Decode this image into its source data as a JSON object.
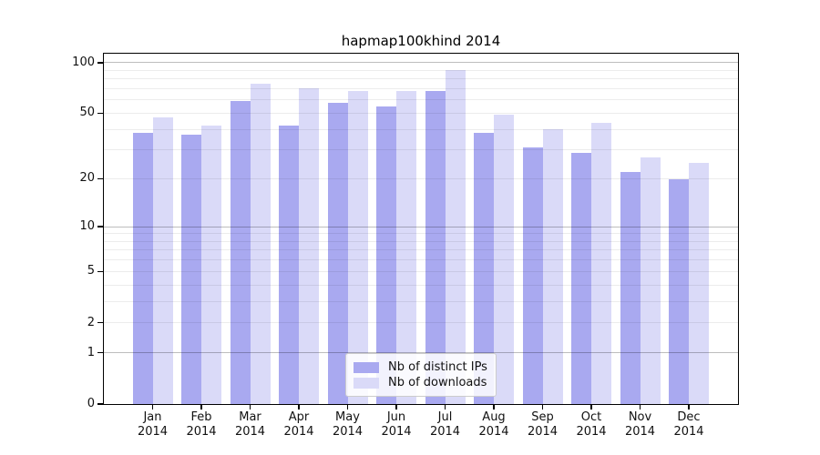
{
  "chart_data": {
    "type": "bar",
    "title": "hapmap100khind 2014",
    "categories": [
      "Jan",
      "Feb",
      "Mar",
      "Apr",
      "May",
      "Jun",
      "Jul",
      "Aug",
      "Sep",
      "Oct",
      "Nov",
      "Dec"
    ],
    "x_year": "2014",
    "series": [
      {
        "name": "Nb of distinct IPs",
        "color": "#a9a9f0",
        "values": [
          38,
          37,
          59,
          42,
          58,
          55,
          68,
          38,
          31,
          29,
          22,
          20
        ]
      },
      {
        "name": "Nb of downloads",
        "color": "#dadaf8",
        "values": [
          47,
          42,
          75,
          70,
          68,
          68,
          90,
          49,
          40,
          44,
          27,
          25
        ]
      }
    ],
    "y_scale": "log1p",
    "y_axis_ticks": [
      0,
      1,
      2,
      5,
      10,
      20,
      50,
      100
    ],
    "y_gridlines_major": [
      1,
      10,
      100
    ],
    "y_gridlines_minor": [
      2,
      3,
      4,
      5,
      6,
      7,
      8,
      9,
      20,
      30,
      40,
      50,
      60,
      70,
      80,
      90
    ],
    "ylim": [
      0,
      113
    ],
    "grid": true,
    "legend_position": "lower center",
    "xlabel": "",
    "ylabel": ""
  }
}
